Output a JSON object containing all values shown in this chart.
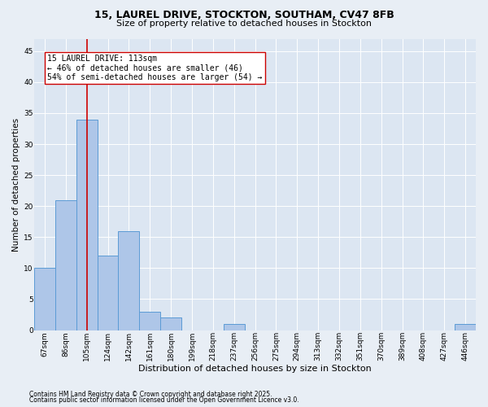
{
  "title1": "15, LAUREL DRIVE, STOCKTON, SOUTHAM, CV47 8FB",
  "title2": "Size of property relative to detached houses in Stockton",
  "xlabel": "Distribution of detached houses by size in Stockton",
  "ylabel": "Number of detached properties",
  "footer1": "Contains HM Land Registry data © Crown copyright and database right 2025.",
  "footer2": "Contains public sector information licensed under the Open Government Licence v3.0.",
  "bin_labels": [
    "67sqm",
    "86sqm",
    "105sqm",
    "124sqm",
    "142sqm",
    "161sqm",
    "180sqm",
    "199sqm",
    "218sqm",
    "237sqm",
    "256sqm",
    "275sqm",
    "294sqm",
    "313sqm",
    "332sqm",
    "351sqm",
    "370sqm",
    "389sqm",
    "408sqm",
    "427sqm",
    "446sqm"
  ],
  "bin_values": [
    10,
    21,
    34,
    12,
    16,
    3,
    2,
    0,
    0,
    1,
    0,
    0,
    0,
    0,
    0,
    0,
    0,
    0,
    0,
    0,
    1
  ],
  "bar_color": "#aec6e8",
  "bar_edgecolor": "#5b9bd5",
  "vline_x": 2.0,
  "vline_color": "#cc0000",
  "annotation_text": "15 LAUREL DRIVE: 113sqm\n← 46% of detached houses are smaller (46)\n54% of semi-detached houses are larger (54) →",
  "ylim": [
    0,
    47
  ],
  "yticks": [
    0,
    5,
    10,
    15,
    20,
    25,
    30,
    35,
    40,
    45
  ],
  "bg_color": "#e8eef5",
  "plot_bg_color": "#dce6f2",
  "title1_fontsize": 9,
  "title2_fontsize": 8,
  "ylabel_fontsize": 7.5,
  "xlabel_fontsize": 8,
  "tick_fontsize": 6.5,
  "footer_fontsize": 5.5,
  "ann_fontsize": 7
}
